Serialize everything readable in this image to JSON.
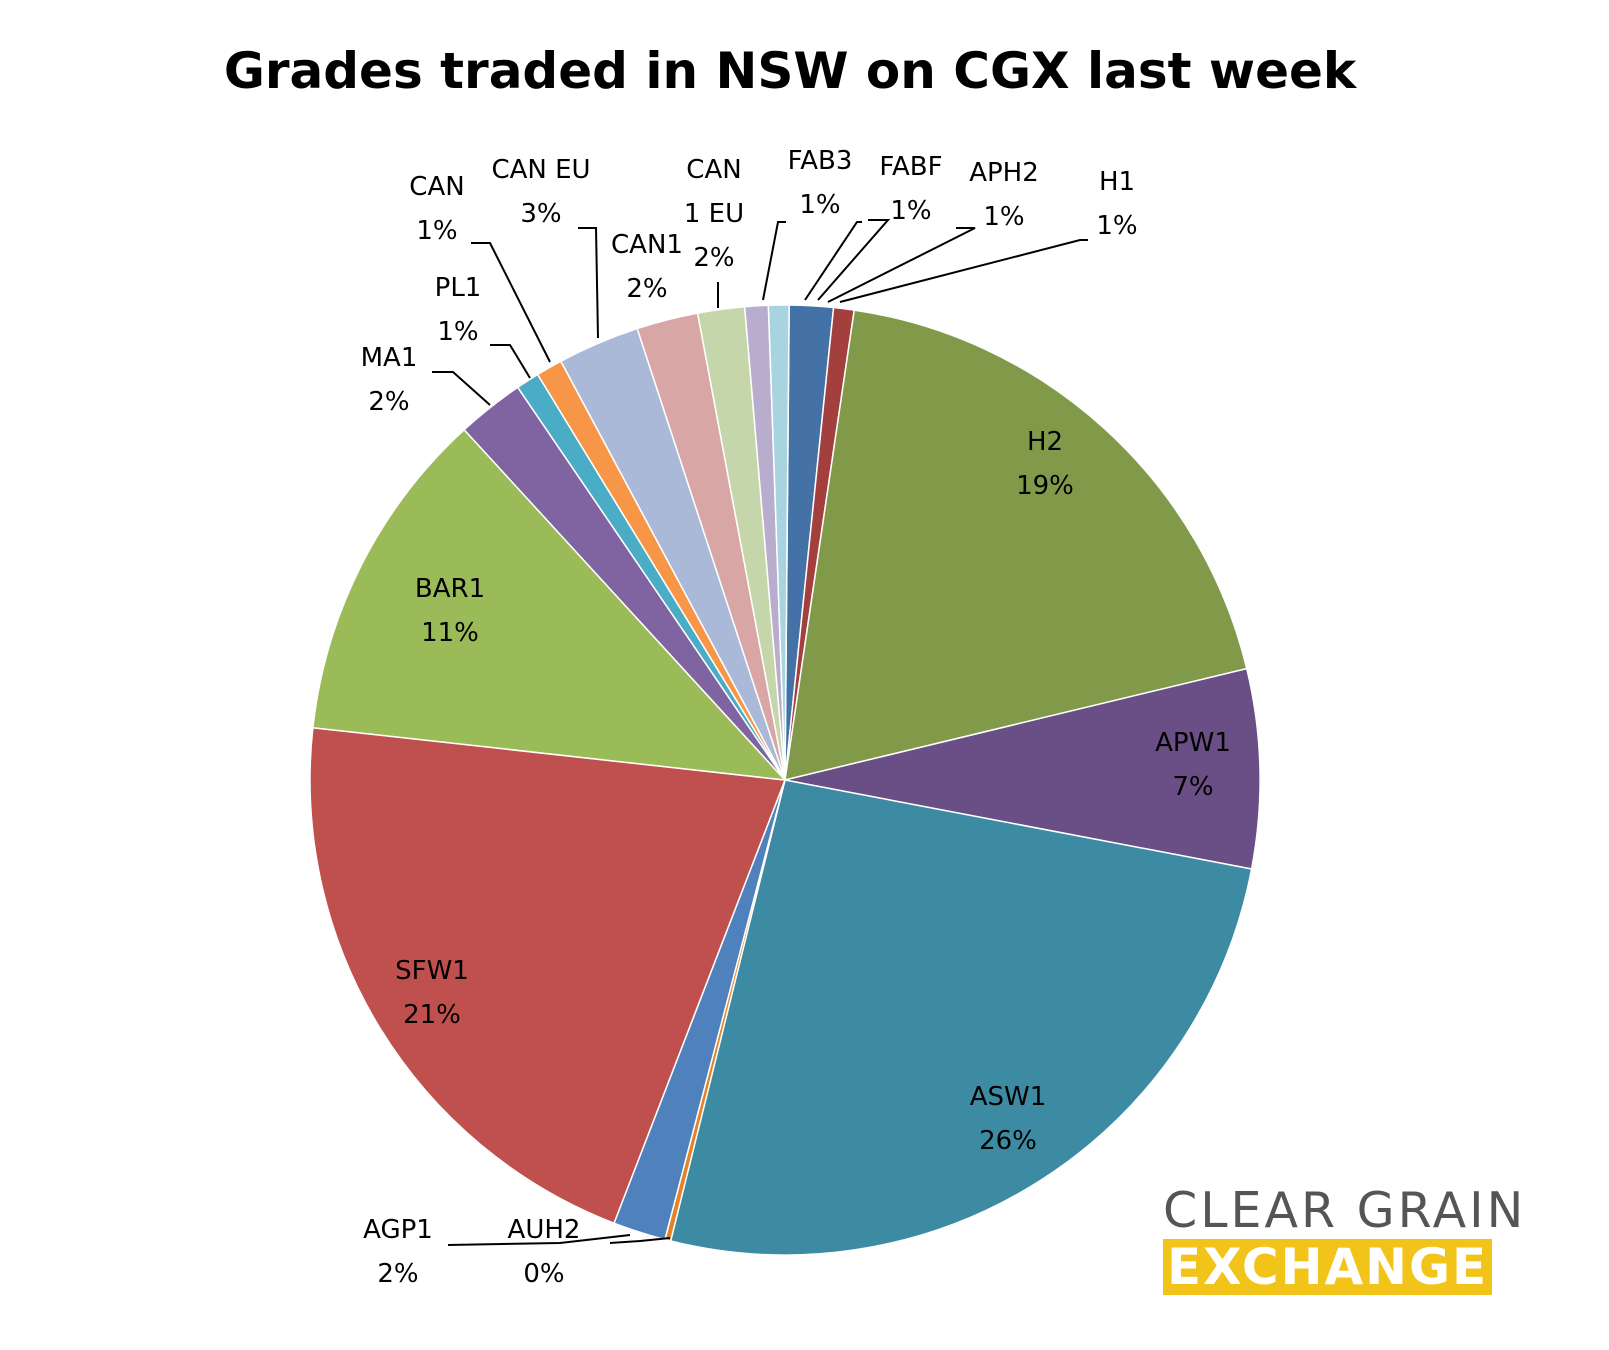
{
  "chart_data": {
    "type": "pie",
    "title": "Grades traded in NSW on CGX last week",
    "slices": [
      {
        "label": "FAB3",
        "pct_label": "1%",
        "value": 1.5,
        "color": "#4472a6"
      },
      {
        "label": "H1",
        "pct_label": "1%",
        "value": 0.7,
        "color": "#a33f3d"
      },
      {
        "label": "H2",
        "pct_label": "19%",
        "value": 19,
        "color": "#809a49"
      },
      {
        "label": "APW1",
        "pct_label": "7%",
        "value": 6.8,
        "color": "#694f85"
      },
      {
        "label": "ASW1",
        "pct_label": "26%",
        "value": 26,
        "color": "#3d8ba3"
      },
      {
        "label": "AUH2",
        "pct_label": "0%",
        "value": 0.2,
        "color": "#e38228"
      },
      {
        "label": "AGP1",
        "pct_label": "2%",
        "value": 1.8,
        "color": "#4f81bd"
      },
      {
        "label": "SFW1",
        "pct_label": "21%",
        "value": 21,
        "color": "#c0504d"
      },
      {
        "label": "BAR1",
        "pct_label": "11%",
        "value": 11.5,
        "color": "#9bbb59"
      },
      {
        "label": "MA1",
        "pct_label": "2%",
        "value": 2.3,
        "color": "#8064a2"
      },
      {
        "label": "PL1",
        "pct_label": "1%",
        "value": 0.8,
        "color": "#4bacc6"
      },
      {
        "label": "CAN",
        "pct_label": "1%",
        "value": 0.9,
        "color": "#f79646"
      },
      {
        "label": "CAN EU",
        "pct_label": "3%",
        "value": 2.8,
        "color": "#aab9d8"
      },
      {
        "label": "CAN1",
        "pct_label": "2%",
        "value": 2.1,
        "color": "#d9a6a6"
      },
      {
        "label": "CAN\n1 EU",
        "pct_label": "2%",
        "value": 1.6,
        "color": "#c5d7aa"
      },
      {
        "label": "FABF",
        "pct_label": "1%",
        "value": 0.8,
        "color": "#b8adcc"
      },
      {
        "label": "APH2",
        "pct_label": "1%",
        "value": 0.7,
        "color": "#a8d4e0"
      }
    ]
  },
  "logo": {
    "line1": "CLEAR GRAIN",
    "line2": "EXCHANGE",
    "text_color": "#555555",
    "bar_color": "#f2c318"
  }
}
